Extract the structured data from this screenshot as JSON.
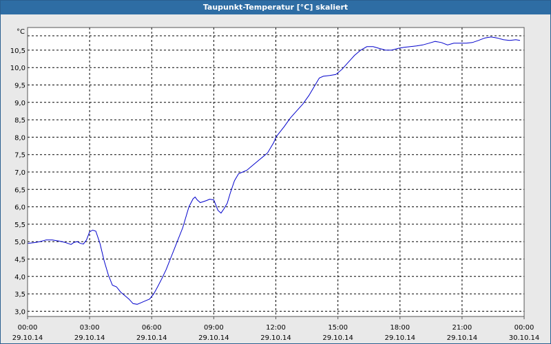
{
  "window": {
    "title": "Taupunkt-Temperatur [°C] skaliert"
  },
  "chart_data": {
    "type": "line",
    "title": "Taupunkt-Temperatur [°C] skaliert",
    "ylabel": "°C",
    "xlabel": "",
    "ylim": [
      2.85,
      11.15
    ],
    "xlim": [
      0,
      24
    ],
    "grid": true,
    "line_color": "#0000cc",
    "grid_color": "#000000",
    "background": "#ffffff",
    "y_ticks": [
      {
        "value": 3.0,
        "label": "3,0"
      },
      {
        "value": 3.5,
        "label": "3,5"
      },
      {
        "value": 4.0,
        "label": "4,0"
      },
      {
        "value": 4.5,
        "label": "4,5"
      },
      {
        "value": 5.0,
        "label": "5,0"
      },
      {
        "value": 5.5,
        "label": "5,5"
      },
      {
        "value": 6.0,
        "label": "6,0"
      },
      {
        "value": 6.5,
        "label": "6,5"
      },
      {
        "value": 7.0,
        "label": "7,0"
      },
      {
        "value": 7.5,
        "label": "7,5"
      },
      {
        "value": 8.0,
        "label": "8,0"
      },
      {
        "value": 8.5,
        "label": "8,5"
      },
      {
        "value": 9.0,
        "label": "9,0"
      },
      {
        "value": 9.5,
        "label": "9,5"
      },
      {
        "value": 10.0,
        "label": "10,0"
      },
      {
        "value": 10.5,
        "label": "10,5"
      }
    ],
    "x_ticks": [
      {
        "value": 0,
        "time": "00:00",
        "date": "29.10.14"
      },
      {
        "value": 3,
        "time": "03:00",
        "date": "29.10.14"
      },
      {
        "value": 6,
        "time": "06:00",
        "date": "29.10.14"
      },
      {
        "value": 9,
        "time": "09:00",
        "date": "29.10.14"
      },
      {
        "value": 12,
        "time": "12:00",
        "date": "29.10.14"
      },
      {
        "value": 15,
        "time": "15:00",
        "date": "29.10.14"
      },
      {
        "value": 18,
        "time": "18:00",
        "date": "29.10.14"
      },
      {
        "value": 21,
        "time": "21:00",
        "date": "29.10.14"
      },
      {
        "value": 24,
        "time": "00:00",
        "date": "30.10.14"
      }
    ],
    "series": [
      {
        "x": [
          0,
          0.3,
          0.6,
          0.9,
          1.2,
          1.5,
          1.8,
          2.1,
          2.25,
          2.4,
          2.55,
          2.7,
          2.85,
          3.0,
          3.15,
          3.3,
          3.5,
          3.7,
          3.9,
          4.1,
          4.3,
          4.5,
          4.7,
          4.9,
          5.1,
          5.3,
          5.5,
          5.7,
          5.9,
          6.1,
          6.3,
          6.5,
          6.7,
          6.9,
          7.2,
          7.5,
          7.8,
          8.0,
          8.1,
          8.2,
          8.35,
          8.5,
          8.65,
          8.8,
          9.0,
          9.2,
          9.35,
          9.5,
          9.65,
          9.8,
          10.0,
          10.2,
          10.4,
          10.6,
          10.8,
          11.0,
          11.3,
          11.6,
          11.9,
          12.0,
          12.2,
          12.4,
          12.7,
          13.0,
          13.3,
          13.6,
          13.9,
          14.1,
          14.3,
          14.6,
          14.9,
          15.2,
          15.5,
          15.8,
          16.1,
          16.4,
          16.7,
          17.0,
          17.3,
          17.6,
          17.9,
          18.2,
          18.5,
          18.8,
          19.1,
          19.4,
          19.7,
          20.0,
          20.3,
          20.6,
          20.9,
          21.2,
          21.5,
          21.8,
          22.1,
          22.4,
          22.7,
          23.0,
          23.3,
          23.6,
          23.8
        ],
        "y": [
          4.95,
          4.97,
          5.0,
          5.05,
          5.05,
          5.02,
          4.98,
          4.92,
          4.98,
          5.0,
          4.95,
          4.93,
          5.05,
          5.28,
          5.33,
          5.3,
          4.95,
          4.45,
          4.05,
          3.75,
          3.7,
          3.55,
          3.45,
          3.35,
          3.22,
          3.2,
          3.25,
          3.3,
          3.35,
          3.5,
          3.72,
          3.95,
          4.2,
          4.5,
          4.95,
          5.4,
          6.0,
          6.23,
          6.28,
          6.2,
          6.12,
          6.15,
          6.18,
          6.22,
          6.2,
          5.9,
          5.82,
          5.95,
          6.1,
          6.4,
          6.75,
          6.95,
          7.0,
          7.05,
          7.15,
          7.25,
          7.4,
          7.55,
          7.85,
          8.0,
          8.15,
          8.3,
          8.55,
          8.75,
          8.95,
          9.2,
          9.5,
          9.7,
          9.75,
          9.77,
          9.8,
          9.95,
          10.15,
          10.35,
          10.5,
          10.6,
          10.6,
          10.55,
          10.5,
          10.5,
          10.55,
          10.58,
          10.6,
          10.62,
          10.65,
          10.7,
          10.75,
          10.72,
          10.65,
          10.7,
          10.7,
          10.7,
          10.72,
          10.78,
          10.85,
          10.88,
          10.85,
          10.8,
          10.78,
          10.8,
          10.78
        ]
      }
    ]
  }
}
